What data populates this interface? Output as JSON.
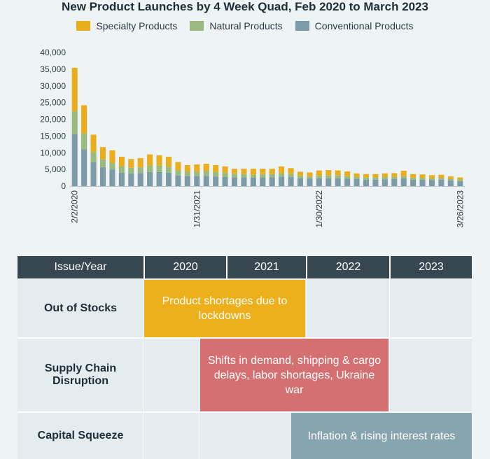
{
  "chart_data": {
    "type": "bar",
    "stacked": true,
    "title": "New Product Launches by 4 Week Quad, Feb 2020 to March 2023",
    "ylim": [
      0,
      40000
    ],
    "y_ticks": [
      "0",
      "5,000",
      "10,000",
      "15,000",
      "20,000",
      "25,000",
      "30,000",
      "35,000",
      "40,000"
    ],
    "y_tick_values": [
      0,
      5000,
      10000,
      15000,
      20000,
      25000,
      30000,
      35000,
      40000
    ],
    "x_tick_labels": [
      "2/2/2020",
      "1/31/2021",
      "1/30/2022",
      "3/26/2023"
    ],
    "x_tick_indices": [
      0,
      13,
      26,
      41
    ],
    "legend_position": "top",
    "series": [
      {
        "name": "Conventional Products",
        "color": "#7d9ba7",
        "values": [
          15500,
          11000,
          7200,
          5700,
          5000,
          4000,
          3800,
          3900,
          4200,
          4200,
          4000,
          3200,
          3000,
          3000,
          3100,
          2900,
          2800,
          2600,
          2600,
          2500,
          2600,
          2600,
          2800,
          2700,
          2300,
          2200,
          2300,
          2300,
          2300,
          2200,
          2100,
          1900,
          1900,
          2000,
          2100,
          2300,
          1900,
          1900,
          1800,
          1900,
          1700,
          1500
        ]
      },
      {
        "name": "Natural Products",
        "color": "#9abb7d",
        "values": [
          6900,
          4700,
          3000,
          2300,
          2000,
          1900,
          1700,
          1700,
          1900,
          1900,
          1800,
          1500,
          1300,
          1300,
          1400,
          1300,
          1200,
          1100,
          1000,
          1000,
          1000,
          1000,
          1100,
          1000,
          800,
          700,
          800,
          900,
          900,
          800,
          700,
          700,
          700,
          700,
          700,
          700,
          600,
          600,
          500,
          500,
          400,
          400
        ]
      },
      {
        "name": "Specialty Products",
        "color": "#eaae1c",
        "values": [
          13000,
          8500,
          5200,
          3700,
          3700,
          2900,
          2600,
          2800,
          3400,
          3100,
          3000,
          2500,
          2000,
          2200,
          2200,
          2100,
          1900,
          1500,
          1600,
          1700,
          1600,
          1600,
          2000,
          1700,
          1200,
          1200,
          1600,
          1600,
          1500,
          1400,
          1000,
          1000,
          1000,
          1100,
          1100,
          1600,
          1100,
          1000,
          1000,
          1000,
          800,
          700
        ]
      }
    ]
  },
  "legend": [
    {
      "label": "Specialty Products",
      "color": "#eaae1c"
    },
    {
      "label": "Natural Products",
      "color": "#9abb7d"
    },
    {
      "label": "Conventional Products",
      "color": "#7d9ba7"
    }
  ],
  "table": {
    "header": {
      "issue": "Issue/Year",
      "y2020": "2020",
      "y2021": "2021",
      "y2022": "2022",
      "y2023": "2023"
    },
    "rows": [
      {
        "label": "Out of Stocks",
        "bar_text": "Product shortages due to lockdowns",
        "bar_color": "#edb01a"
      },
      {
        "label": "Supply Chain Disruption",
        "bar_text": "Shifts in demand, shipping & cargo delays, labor shortages, Ukraine war",
        "bar_color": "#d57072"
      },
      {
        "label": "Capital Squeeze",
        "bar_text": "Inflation & rising interest rates",
        "bar_color": "#87a5af"
      }
    ]
  }
}
